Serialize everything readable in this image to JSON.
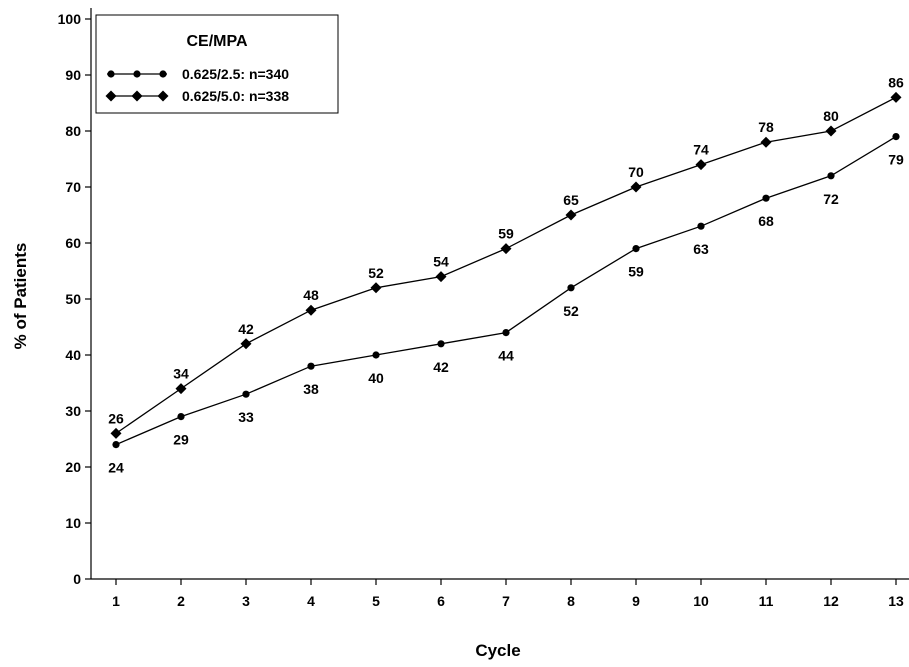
{
  "chart_data": {
    "type": "line",
    "title": "",
    "xlabel": "Cycle",
    "ylabel": "% of Patients",
    "x": [
      1,
      2,
      3,
      4,
      5,
      6,
      7,
      8,
      9,
      10,
      11,
      12,
      13
    ],
    "ylim": [
      0,
      100
    ],
    "yticks": [
      0,
      10,
      20,
      30,
      40,
      50,
      60,
      70,
      80,
      90,
      100
    ],
    "grid": false,
    "legend": {
      "title": "CE/MPA",
      "placement": "top-left"
    },
    "series": [
      {
        "name": "0.625/2.5: n=340",
        "marker": "circle",
        "values": [
          24,
          29,
          33,
          38,
          40,
          42,
          44,
          52,
          59,
          63,
          68,
          72,
          79
        ],
        "labels": [
          "24",
          "29",
          "33",
          "38",
          "40",
          "42",
          "44",
          "52",
          "59",
          "63",
          "68",
          "72",
          "79"
        ],
        "label_position": "below"
      },
      {
        "name": "0.625/5.0: n=338",
        "marker": "diamond",
        "values": [
          26,
          34,
          42,
          48,
          52,
          54,
          59,
          65,
          70,
          74,
          78,
          80,
          86
        ],
        "labels": [
          "26",
          "34",
          "42",
          "48",
          "52",
          "54",
          "59",
          "65",
          "70",
          "74",
          "78",
          "80",
          "86"
        ],
        "label_position": "above"
      }
    ]
  }
}
